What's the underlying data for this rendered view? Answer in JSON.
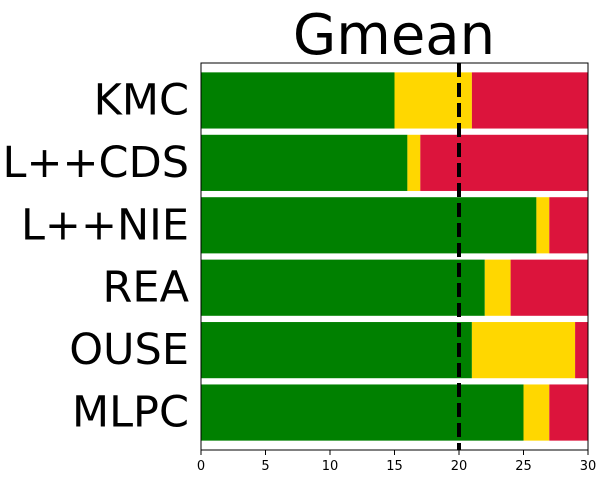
{
  "chart_data": {
    "type": "bar",
    "orientation": "horizontal",
    "stacked": true,
    "title": "Gmean",
    "xlabel": "",
    "ylabel": "",
    "xlim": [
      0,
      30
    ],
    "x_ticks": [
      "0",
      "5",
      "10",
      "15",
      "20",
      "25",
      "30"
    ],
    "categories": [
      "KMC",
      "L++CDS",
      "L++NIE",
      "REA",
      "OUSE",
      "MLPC"
    ],
    "series": [
      {
        "color": "#008000",
        "values": [
          15,
          16,
          26,
          22,
          21,
          25
        ]
      },
      {
        "color": "#FFD700",
        "values": [
          6,
          1,
          1,
          2,
          8,
          2
        ]
      },
      {
        "color": "#DC143C",
        "values": [
          9,
          13,
          3,
          6,
          1,
          3
        ]
      }
    ],
    "reference_line": {
      "x": 20,
      "style": "dashed",
      "color": "#000000"
    },
    "grid": false,
    "legend": "none"
  }
}
